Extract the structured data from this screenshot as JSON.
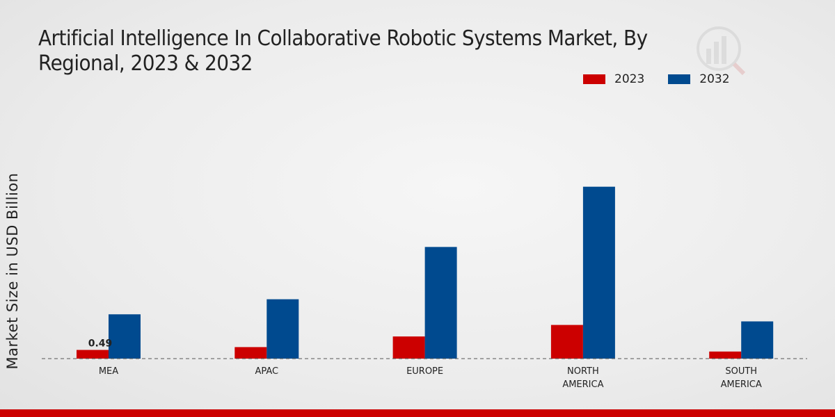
{
  "chart_data": {
    "type": "bar",
    "title": "Artificial Intelligence In Collaborative Robotic Systems Market, By Regional, 2023 & 2032",
    "xlabel": "",
    "ylabel": "Market Size in USD Billion",
    "categories": [
      "MEA",
      "APAC",
      "EUROPE",
      "NORTH AMERICA",
      "SOUTH AMERICA"
    ],
    "series": [
      {
        "name": "2023",
        "color": "#cc0000",
        "values": [
          0.49,
          0.65,
          1.25,
          1.9,
          0.4
        ]
      },
      {
        "name": "2032",
        "color": "#004a8f",
        "values": [
          2.5,
          3.35,
          6.3,
          9.7,
          2.1
        ]
      }
    ],
    "data_labels": [
      {
        "series": 0,
        "index": 0,
        "text": "0.49"
      }
    ],
    "ylim": [
      0,
      12
    ],
    "legend": "top-right",
    "grid": false
  }
}
